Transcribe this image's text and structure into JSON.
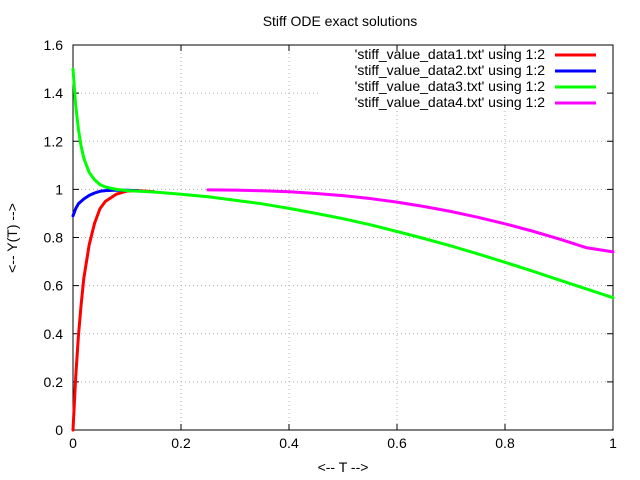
{
  "chart_data": {
    "type": "line",
    "title": "Stiff ODE exact solutions",
    "xlabel": "<-- T -->",
    "ylabel": "<-- Y(T) -->",
    "xlim": [
      0,
      1
    ],
    "ylim": [
      0,
      1.6
    ],
    "xticks": [
      0,
      0.2,
      0.4,
      0.6,
      0.8,
      1
    ],
    "xtick_labels": [
      "0",
      "0.2",
      "0.4",
      "0.6",
      "0.8",
      "1"
    ],
    "yticks": [
      0,
      0.2,
      0.4,
      0.6,
      0.8,
      1,
      1.2,
      1.4,
      1.6
    ],
    "ytick_labels": [
      "0",
      "0.2",
      "0.4",
      "0.6",
      "0.8",
      "1",
      "1.2",
      "1.4",
      "1.6"
    ],
    "grid": true,
    "legend_position": "top-right",
    "series": [
      {
        "name": "'stiff_value_data1.txt' using 1:2",
        "color": "#ff0000",
        "x": [
          0,
          0.005,
          0.01,
          0.015,
          0.02,
          0.03,
          0.04,
          0.05,
          0.06,
          0.08,
          0.1,
          0.12,
          0.15
        ],
        "y": [
          0,
          0.22,
          0.39,
          0.52,
          0.63,
          0.77,
          0.86,
          0.92,
          0.95,
          0.98,
          0.993,
          0.995,
          0.99
        ]
      },
      {
        "name": "'stiff_value_data2.txt' using 1:2",
        "color": "#0000ff",
        "x": [
          0,
          0.005,
          0.01,
          0.02,
          0.03,
          0.04,
          0.05,
          0.06,
          0.08,
          0.1,
          0.12
        ],
        "y": [
          0.89,
          0.92,
          0.94,
          0.96,
          0.975,
          0.985,
          0.992,
          0.995,
          0.997,
          0.996,
          0.994
        ]
      },
      {
        "name": "'stiff_value_data3.txt' using 1:2",
        "color": "#00ff00",
        "x": [
          0,
          0.005,
          0.01,
          0.015,
          0.02,
          0.03,
          0.04,
          0.05,
          0.06,
          0.08,
          0.1,
          0.15,
          0.2,
          0.25,
          0.3,
          0.35,
          0.4,
          0.45,
          0.5,
          0.55,
          0.6,
          0.65,
          0.7,
          0.75,
          0.8,
          0.85,
          0.9,
          0.95,
          1.0
        ],
        "y": [
          1.5,
          1.35,
          1.25,
          1.18,
          1.13,
          1.07,
          1.04,
          1.02,
          1.01,
          1.0,
          0.995,
          0.989,
          0.98,
          0.969,
          0.955,
          0.94,
          0.921,
          0.9,
          0.878,
          0.853,
          0.825,
          0.796,
          0.765,
          0.732,
          0.697,
          0.661,
          0.624,
          0.587,
          0.55
        ]
      },
      {
        "name": "'stiff_value_data4.txt' using 1:2",
        "color": "#ff00ff",
        "x": [
          0.25,
          0.3,
          0.35,
          0.4,
          0.45,
          0.5,
          0.55,
          0.6,
          0.65,
          0.7,
          0.75,
          0.8,
          0.85,
          0.9,
          0.95,
          1.0
        ],
        "y": [
          0.998,
          0.997,
          0.994,
          0.99,
          0.983,
          0.974,
          0.962,
          0.947,
          0.929,
          0.908,
          0.884,
          0.857,
          0.827,
          0.794,
          0.758,
          0.74
        ]
      }
    ]
  }
}
